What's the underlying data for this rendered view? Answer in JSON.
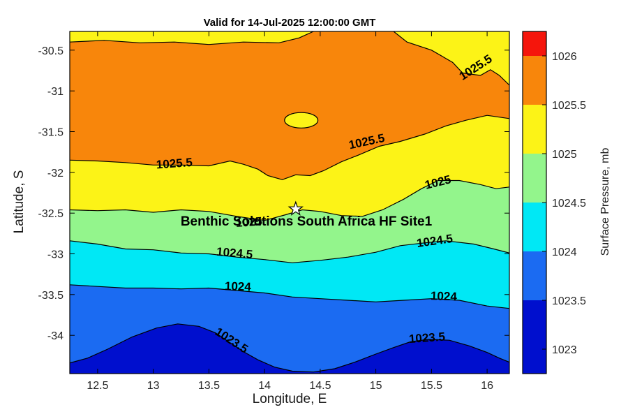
{
  "chart_data": {
    "type": "filled_contour",
    "title": "Valid for 14-Jul-2025 12:00:00 GMT",
    "xlabel": "Longitude, E",
    "ylabel": "Latitude, S",
    "units": "mb",
    "xlim": [
      12.25,
      16.2
    ],
    "ylim": [
      -34.47,
      -30.27
    ],
    "xticks": [
      12.5,
      13,
      13.5,
      14,
      14.5,
      15,
      15.5,
      16
    ],
    "yticks": [
      -30.5,
      -31,
      -31.5,
      -32,
      -32.5,
      -33,
      -33.5,
      -34
    ],
    "contour_levels": [
      1023.5,
      1024,
      1024.5,
      1025,
      1025.5
    ],
    "grid": false,
    "palette": [
      {
        "name": "red",
        "hex": "#F5150C",
        "range": [
          1026,
          1026.5
        ]
      },
      {
        "name": "orange",
        "hex": "#F8860B",
        "range": [
          1025.5,
          1026
        ]
      },
      {
        "name": "yellow",
        "hex": "#FCF317",
        "range": [
          1025,
          1025.5
        ]
      },
      {
        "name": "green",
        "hex": "#93F58C",
        "range": [
          1024.5,
          1025
        ]
      },
      {
        "name": "cyan",
        "hex": "#00E8F5",
        "range": [
          1024,
          1024.5
        ]
      },
      {
        "name": "blue",
        "hex": "#1B6BF2",
        "range": [
          1023.5,
          1024
        ]
      },
      {
        "name": "darkblue",
        "hex": "#000FCE",
        "range": [
          1023,
          1023.5
        ]
      }
    ],
    "contours": [
      {
        "id": "upper1025_5_left",
        "level": 1025.5,
        "points": [
          [
            12.25,
            -30.4
          ],
          [
            12.56,
            -30.38
          ],
          [
            12.88,
            -30.41
          ],
          [
            13.19,
            -30.4
          ],
          [
            13.5,
            -30.43
          ],
          [
            13.81,
            -30.4
          ],
          [
            14.13,
            -30.41
          ],
          [
            14.31,
            -30.35
          ],
          [
            14.44,
            -30.27
          ]
        ]
      },
      {
        "id": "upper1025_5_right",
        "level": 1025.5,
        "points": [
          [
            15.16,
            -30.27
          ],
          [
            15.28,
            -30.4
          ],
          [
            15.5,
            -30.5
          ],
          [
            15.69,
            -30.65
          ],
          [
            15.78,
            -30.78
          ],
          [
            15.94,
            -30.81
          ],
          [
            16.03,
            -30.74
          ],
          [
            16.11,
            -30.81
          ],
          [
            16.2,
            -30.93
          ]
        ]
      },
      {
        "id": "lower1025_5",
        "level": 1025.5,
        "points": [
          [
            12.25,
            -31.85
          ],
          [
            12.5,
            -31.86
          ],
          [
            12.75,
            -31.88
          ],
          [
            13.0,
            -31.91
          ],
          [
            13.25,
            -31.91
          ],
          [
            13.5,
            -31.92
          ],
          [
            13.69,
            -31.86
          ],
          [
            13.81,
            -31.9
          ],
          [
            13.94,
            -31.96
          ],
          [
            14.03,
            -32.04
          ],
          [
            14.16,
            -32.09
          ],
          [
            14.28,
            -32.03
          ],
          [
            14.41,
            -32.04
          ],
          [
            14.53,
            -31.98
          ],
          [
            14.69,
            -31.87
          ],
          [
            14.84,
            -31.79
          ],
          [
            15.03,
            -31.68
          ],
          [
            15.22,
            -31.62
          ],
          [
            15.44,
            -31.53
          ],
          [
            15.63,
            -31.43
          ],
          [
            15.81,
            -31.36
          ],
          [
            16.0,
            -31.3
          ],
          [
            16.2,
            -31.34
          ]
        ]
      },
      {
        "id": "island1025_5",
        "level": 1025.5,
        "ellipse": {
          "cx": 14.33,
          "cy": -31.36,
          "rx": 0.15,
          "ry": 0.095
        }
      },
      {
        "id": "c1025",
        "level": 1025,
        "points": [
          [
            12.25,
            -32.46
          ],
          [
            12.5,
            -32.47
          ],
          [
            12.75,
            -32.46
          ],
          [
            13.0,
            -32.49
          ],
          [
            13.25,
            -32.46
          ],
          [
            13.5,
            -32.48
          ],
          [
            13.75,
            -32.54
          ],
          [
            14.0,
            -32.59
          ],
          [
            14.19,
            -32.52
          ],
          [
            14.34,
            -32.46
          ],
          [
            14.5,
            -32.48
          ],
          [
            14.69,
            -32.53
          ],
          [
            14.88,
            -32.54
          ],
          [
            15.06,
            -32.46
          ],
          [
            15.25,
            -32.33
          ],
          [
            15.41,
            -32.2
          ],
          [
            15.56,
            -32.1
          ],
          [
            15.75,
            -32.1
          ],
          [
            15.94,
            -32.15
          ],
          [
            16.08,
            -32.2
          ],
          [
            16.2,
            -32.18
          ]
        ]
      },
      {
        "id": "c1024_5",
        "level": 1024.5,
        "points": [
          [
            12.25,
            -32.84
          ],
          [
            12.5,
            -32.88
          ],
          [
            12.75,
            -32.94
          ],
          [
            13.0,
            -32.95
          ],
          [
            13.25,
            -32.99
          ],
          [
            13.5,
            -33.0
          ],
          [
            13.75,
            -33.04
          ],
          [
            14.0,
            -33.07
          ],
          [
            14.25,
            -33.11
          ],
          [
            14.5,
            -33.08
          ],
          [
            14.75,
            -33.04
          ],
          [
            15.0,
            -32.98
          ],
          [
            15.22,
            -32.9
          ],
          [
            15.41,
            -32.87
          ],
          [
            15.63,
            -32.84
          ],
          [
            15.88,
            -32.88
          ],
          [
            16.06,
            -32.94
          ],
          [
            16.2,
            -32.99
          ]
        ]
      },
      {
        "id": "c1024",
        "level": 1024,
        "points": [
          [
            12.25,
            -33.38
          ],
          [
            12.5,
            -33.4
          ],
          [
            12.75,
            -33.42
          ],
          [
            13.0,
            -33.42
          ],
          [
            13.25,
            -33.43
          ],
          [
            13.5,
            -33.42
          ],
          [
            13.75,
            -33.45
          ],
          [
            14.0,
            -33.48
          ],
          [
            14.25,
            -33.53
          ],
          [
            14.5,
            -33.55
          ],
          [
            14.75,
            -33.57
          ],
          [
            15.0,
            -33.59
          ],
          [
            15.25,
            -33.57
          ],
          [
            15.5,
            -33.55
          ],
          [
            15.75,
            -33.57
          ],
          [
            16.0,
            -33.64
          ],
          [
            16.2,
            -33.67
          ]
        ]
      },
      {
        "id": "c1023_5",
        "level": 1023.5,
        "points": [
          [
            12.25,
            -34.34
          ],
          [
            12.41,
            -34.28
          ],
          [
            12.59,
            -34.17
          ],
          [
            12.81,
            -34.02
          ],
          [
            13.03,
            -33.91
          ],
          [
            13.22,
            -33.86
          ],
          [
            13.41,
            -33.89
          ],
          [
            13.56,
            -33.97
          ],
          [
            13.69,
            -34.09
          ],
          [
            13.81,
            -34.2
          ],
          [
            13.94,
            -34.3
          ],
          [
            14.09,
            -34.39
          ],
          [
            14.25,
            -34.44
          ],
          [
            14.44,
            -34.45
          ],
          [
            14.63,
            -34.41
          ],
          [
            14.81,
            -34.33
          ],
          [
            15.0,
            -34.23
          ],
          [
            15.16,
            -34.15
          ],
          [
            15.31,
            -34.08
          ],
          [
            15.47,
            -34.05
          ],
          [
            15.66,
            -34.06
          ],
          [
            15.84,
            -34.13
          ],
          [
            16.0,
            -34.21
          ],
          [
            16.11,
            -34.28
          ],
          [
            16.2,
            -34.33
          ]
        ]
      }
    ],
    "contour_labels": [
      {
        "text": "1025.5",
        "lon": 13.19,
        "lat": -31.9,
        "rot": -4
      },
      {
        "text": "1025.5",
        "lon": 14.92,
        "lat": -31.63,
        "rot": -12
      },
      {
        "text": "1025.5",
        "lon": 15.9,
        "lat": -30.72,
        "rot": -33
      },
      {
        "text": "1025",
        "lon": 13.86,
        "lat": -32.62,
        "rot": -4
      },
      {
        "text": "1025",
        "lon": 15.56,
        "lat": -32.13,
        "rot": -14
      },
      {
        "text": "1024.5",
        "lon": 13.73,
        "lat": -33.0,
        "rot": 5
      },
      {
        "text": "1024.5",
        "lon": 15.53,
        "lat": -32.85,
        "rot": -8
      },
      {
        "text": "1024",
        "lon": 13.76,
        "lat": -33.41,
        "rot": 2
      },
      {
        "text": "1024",
        "lon": 15.61,
        "lat": -33.53,
        "rot": 2
      },
      {
        "text": "1023.5",
        "lon": 13.7,
        "lat": -34.07,
        "rot": 33
      },
      {
        "text": "1023.5",
        "lon": 15.46,
        "lat": -34.04,
        "rot": -4
      }
    ],
    "site_marker": {
      "marker": "pentagram",
      "marker_color": "#ffffff",
      "lon": 14.28,
      "lat": -32.45,
      "label": "Benthic Solutions South Africa HF Site1"
    },
    "colorbar": {
      "label": "Surface Pressure, mb",
      "vmin": 1022.75,
      "vmax": 1026.25,
      "ticks": [
        1026,
        1025.5,
        1025,
        1024.5,
        1024,
        1023.5,
        1023
      ],
      "bands": [
        {
          "color": "#F5150C",
          "from": 1026,
          "to": 1026.25
        },
        {
          "color": "#F8860B",
          "from": 1025.5,
          "to": 1026
        },
        {
          "color": "#FCF317",
          "from": 1025,
          "to": 1025.5
        },
        {
          "color": "#93F58C",
          "from": 1024.5,
          "to": 1025
        },
        {
          "color": "#00E8F5",
          "from": 1024,
          "to": 1024.5
        },
        {
          "color": "#1B6BF2",
          "from": 1023.5,
          "to": 1024
        },
        {
          "color": "#000FCE",
          "from": 1022.75,
          "to": 1023.5
        }
      ]
    }
  }
}
